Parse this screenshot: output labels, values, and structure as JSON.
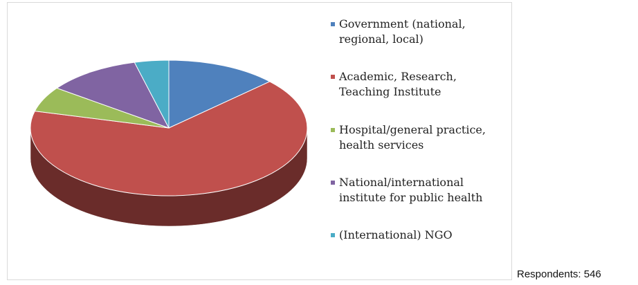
{
  "chart_data": {
    "type": "pie",
    "categories": [
      "Government (national, regional, local)",
      "Academic, Research, Teaching Institute",
      "Hospital/general practice, health services",
      "National/international institute for public health",
      "(International) NGO"
    ],
    "values": [
      13,
      66,
      6,
      11,
      4
    ],
    "colors": [
      "#4f81bd",
      "#c0504d",
      "#9bbb59",
      "#8064a2",
      "#4bacc6"
    ],
    "legend": "right",
    "note": "Respondents: 546"
  }
}
